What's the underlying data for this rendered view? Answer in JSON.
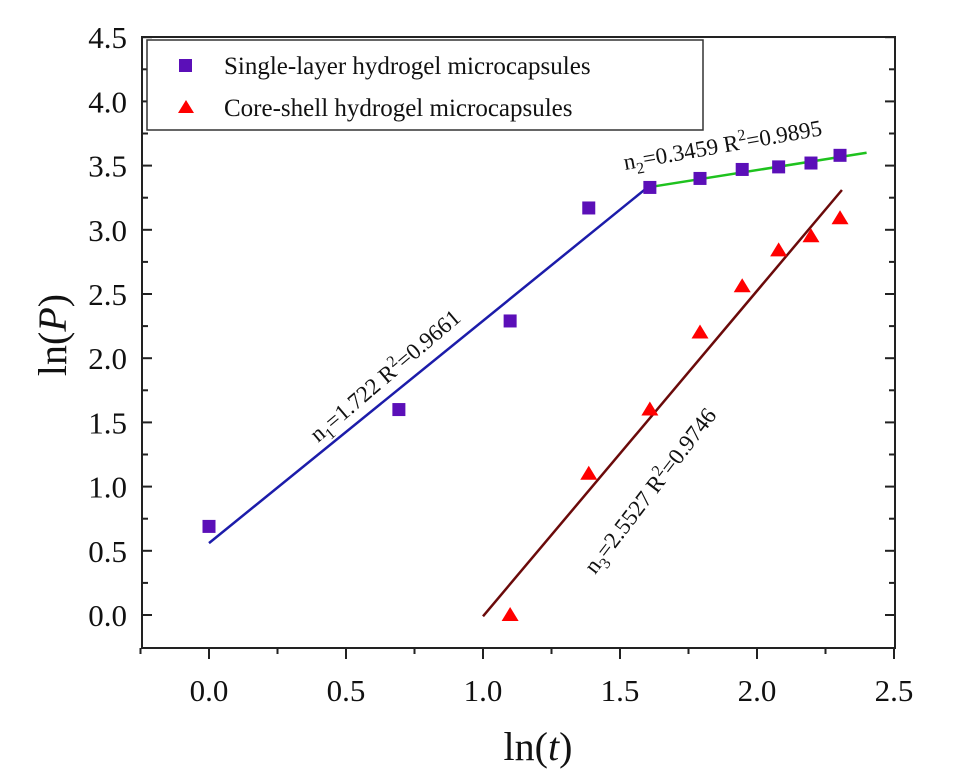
{
  "chart_data": {
    "type": "scatter",
    "title": "",
    "xlabel": "ln(t)",
    "xlabel_parts": {
      "fn": "ln(",
      "var": "t",
      "close": ")"
    },
    "ylabel": "ln(P)",
    "ylabel_parts": {
      "fn": "ln(",
      "var": "P",
      "close": ")"
    },
    "xlim": [
      -0.25,
      2.5
    ],
    "ylim": [
      -0.25,
      4.5
    ],
    "x_ticks": [
      0.0,
      0.5,
      1.0,
      1.5,
      2.0,
      2.5
    ],
    "x_tick_labels": [
      "0.0",
      "0.5",
      "1.0",
      "1.5",
      "2.0",
      "2.5"
    ],
    "y_ticks": [
      0.0,
      0.5,
      1.0,
      1.5,
      2.0,
      2.5,
      3.0,
      3.5,
      4.0,
      4.5
    ],
    "y_tick_labels": [
      "0.0",
      "0.5",
      "1.0",
      "1.5",
      "2.0",
      "2.5",
      "3.0",
      "3.5",
      "4.0",
      "4.5"
    ],
    "grid": false,
    "legend_position": "top-left",
    "series": [
      {
        "name": "Single-layer hydrogel microcapsules",
        "marker": "square",
        "color": "#5b0fb8",
        "x": [
          0.0,
          0.693,
          1.099,
          1.386,
          1.609,
          1.792,
          1.946,
          2.079,
          2.197,
          2.303
        ],
        "y": [
          0.69,
          1.6,
          2.29,
          3.17,
          3.33,
          3.4,
          3.47,
          3.49,
          3.52,
          3.58
        ]
      },
      {
        "name": "Core-shell hydrogel microcapsules",
        "marker": "triangle",
        "color": "#ff0000",
        "x": [
          1.099,
          1.386,
          1.609,
          1.792,
          1.946,
          2.079,
          2.197,
          2.303
        ],
        "y": [
          0.0,
          1.1,
          1.6,
          2.2,
          2.56,
          2.84,
          2.95,
          3.09
        ]
      }
    ],
    "fit_lines": [
      {
        "name": "fit-n1",
        "color": "#1c1caa",
        "x": [
          0.0,
          1.6
        ],
        "y": [
          0.56,
          3.33
        ],
        "label": {
          "main": "n",
          "sub": "1",
          "rest": "=1.722  R",
          "sup": "2",
          "end": "=0.9661"
        }
      },
      {
        "name": "fit-n2",
        "color": "#1ec21e",
        "x": [
          1.6,
          2.4
        ],
        "y": [
          3.33,
          3.6
        ],
        "label": {
          "main": "n",
          "sub": "2",
          "rest": "=0.3459 R",
          "sup": "2",
          "end": "=0.9895"
        }
      },
      {
        "name": "fit-n3",
        "color": "#6b0a0a",
        "x": [
          1.0,
          2.31
        ],
        "y": [
          -0.01,
          3.31
        ],
        "label": {
          "main": "n",
          "sub": "3",
          "rest": "=2.5527 R",
          "sup": "2",
          "end": "=0.9746"
        }
      }
    ]
  }
}
